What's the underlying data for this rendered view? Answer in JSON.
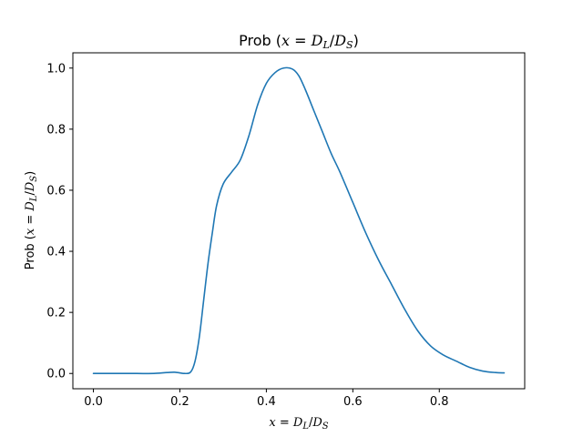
{
  "chart_data": {
    "type": "line",
    "title": "Prob (x = D_L/D_S)",
    "xlabel": "x = D_L/D_S",
    "ylabel": "Prob (x = D_L/D_S)",
    "xlim": [
      -0.0475,
      0.9975
    ],
    "ylim": [
      -0.05,
      1.05
    ],
    "xticks": [
      "0.0",
      "0.2",
      "0.4",
      "0.6",
      "0.8"
    ],
    "yticks": [
      "0.0",
      "0.2",
      "0.4",
      "0.6",
      "0.8",
      "1.0"
    ],
    "grid": false,
    "legend": "none",
    "line_color": "#1f77b4",
    "series": [
      {
        "x": [
          0.0,
          0.05,
          0.1,
          0.14,
          0.17,
          0.19,
          0.21,
          0.225,
          0.235,
          0.245,
          0.255,
          0.265,
          0.275,
          0.285,
          0.3,
          0.32,
          0.34,
          0.36,
          0.38,
          0.4,
          0.42,
          0.44,
          0.46,
          0.475,
          0.49,
          0.51,
          0.53,
          0.55,
          0.57,
          0.6,
          0.63,
          0.66,
          0.69,
          0.72,
          0.75,
          0.78,
          0.81,
          0.84,
          0.87,
          0.9,
          0.93,
          0.95
        ],
        "y": [
          0.0,
          0.0,
          0.0,
          0.0,
          0.003,
          0.004,
          0.0,
          0.005,
          0.04,
          0.12,
          0.24,
          0.36,
          0.46,
          0.55,
          0.62,
          0.66,
          0.7,
          0.78,
          0.88,
          0.95,
          0.985,
          1.0,
          0.997,
          0.975,
          0.93,
          0.86,
          0.79,
          0.72,
          0.66,
          0.56,
          0.46,
          0.37,
          0.29,
          0.21,
          0.14,
          0.09,
          0.06,
          0.04,
          0.02,
          0.008,
          0.003,
          0.002
        ]
      }
    ]
  }
}
